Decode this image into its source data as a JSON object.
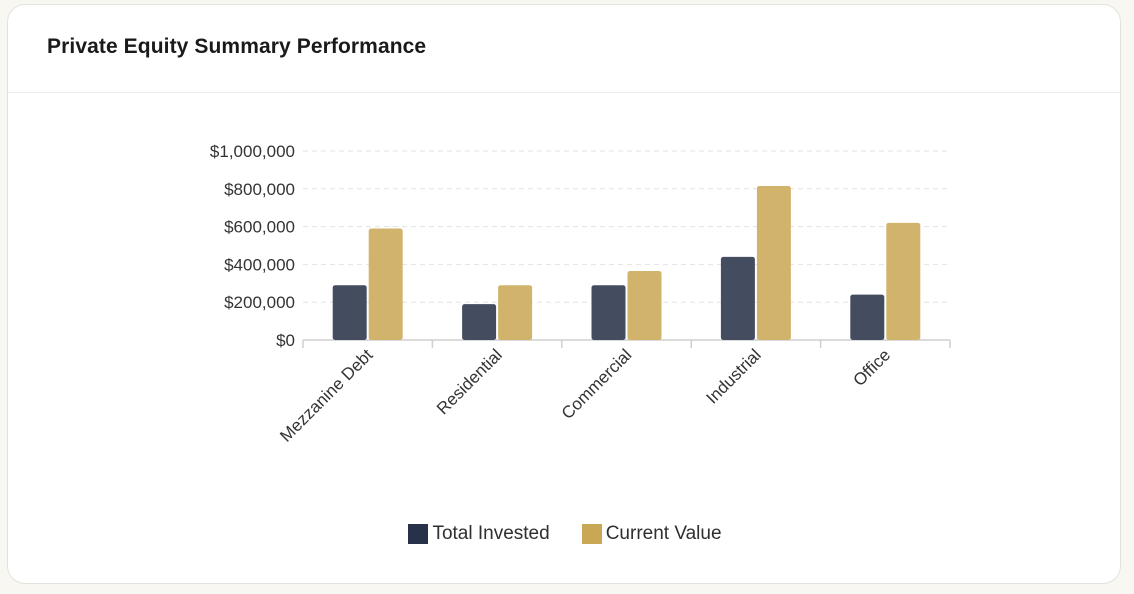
{
  "card": {
    "title": "Private Equity Summary Performance"
  },
  "colors": {
    "total_invested": "#444d5f",
    "current_value": "#d1b36c",
    "legend_total": "#27324a",
    "legend_current": "#c9a855"
  },
  "chart_data": {
    "type": "bar",
    "title": "",
    "categories": [
      "Mezzanine Debt",
      "Residential",
      "Commercial",
      "Industrial",
      "Office"
    ],
    "series": [
      {
        "name": "Total Invested",
        "values": [
          290000,
          190000,
          290000,
          440000,
          240000
        ]
      },
      {
        "name": "Current Value",
        "values": [
          590000,
          290000,
          365000,
          815000,
          620000
        ]
      }
    ],
    "y_ticks": [
      "$0",
      "$200,000",
      "$400,000",
      "$600,000",
      "$800,000",
      "$1,000,000"
    ],
    "ylim": [
      0,
      1000000
    ],
    "grid": true,
    "legend": "bottom"
  }
}
